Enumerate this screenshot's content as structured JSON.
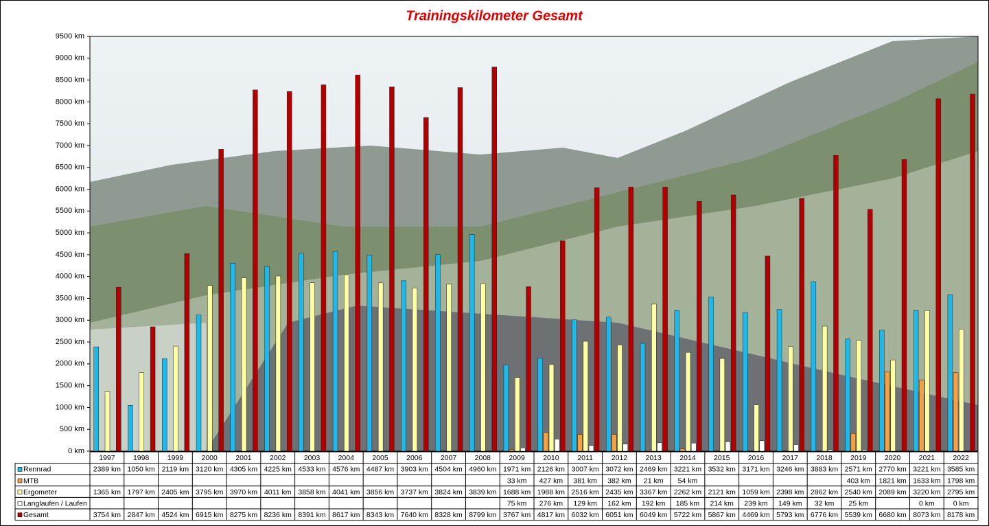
{
  "chart_data": {
    "type": "bar",
    "title": "Trainingskilometer  Gesamt",
    "categories": [
      "1997",
      "1998",
      "1999",
      "2000",
      "2001",
      "2002",
      "2003",
      "2004",
      "2005",
      "2006",
      "2007",
      "2008",
      "2009",
      "2010",
      "2011",
      "2012",
      "2013",
      "2014",
      "2015",
      "2016",
      "2017",
      "2018",
      "2019",
      "2020",
      "2021",
      "2022"
    ],
    "ylim": [
      0,
      9500
    ],
    "yticks": [
      {
        "value": 0,
        "label": "0 km"
      },
      {
        "value": 500,
        "label": "500 km"
      },
      {
        "value": 1000,
        "label": "1000 km"
      },
      {
        "value": 1500,
        "label": "1500 km"
      },
      {
        "value": 2000,
        "label": "2000 km"
      },
      {
        "value": 2500,
        "label": "2500 km"
      },
      {
        "value": 3000,
        "label": "3000 km"
      },
      {
        "value": 3500,
        "label": "3500 km"
      },
      {
        "value": 4000,
        "label": "4000 km"
      },
      {
        "value": 4500,
        "label": "4500 km"
      },
      {
        "value": 5000,
        "label": "5000 km"
      },
      {
        "value": 5500,
        "label": "5500 km"
      },
      {
        "value": 6000,
        "label": "6000 km"
      },
      {
        "value": 6500,
        "label": "6500 km"
      },
      {
        "value": 7000,
        "label": "7000 km"
      },
      {
        "value": 7500,
        "label": "7500 km"
      },
      {
        "value": 8000,
        "label": "8000 km"
      },
      {
        "value": 8500,
        "label": "8500 km"
      },
      {
        "value": 9000,
        "label": "9000 km"
      },
      {
        "value": 9500,
        "label": "9500 km"
      }
    ],
    "series": [
      {
        "name": "Rennrad",
        "color": "#1fb8e8",
        "values": [
          2389,
          1050,
          2119,
          3120,
          4305,
          4225,
          4533,
          4576,
          4487,
          3903,
          4504,
          4960,
          1971,
          2126,
          3007,
          3072,
          2469,
          3221,
          3532,
          3171,
          3246,
          3883,
          2571,
          2770,
          3221,
          3585
        ],
        "value_labels": [
          "2389 km",
          "1050 km",
          "2119 km",
          "3120 km",
          "4305 km",
          "4225 km",
          "4533 km",
          "4576 km",
          "4487 km",
          "3903 km",
          "4504 km",
          "4960 km",
          "1971 km",
          "2126 km",
          "3007 km",
          "3072 km",
          "2469 km",
          "3221 km",
          "3532 km",
          "3171 km",
          "3246 km",
          "3883 km",
          "2571 km",
          "2770 km",
          "3221 km",
          "3585 km"
        ]
      },
      {
        "name": "MTB",
        "color": "#f5a042",
        "values": [
          null,
          null,
          null,
          null,
          null,
          null,
          null,
          null,
          null,
          null,
          null,
          null,
          33,
          427,
          381,
          382,
          21,
          54,
          null,
          null,
          null,
          null,
          403,
          1821,
          1633,
          1798
        ],
        "value_labels": [
          null,
          null,
          null,
          null,
          null,
          null,
          null,
          null,
          null,
          null,
          null,
          null,
          "33 km",
          "427 km",
          "381 km",
          "382 km",
          "21 km",
          "54 km",
          null,
          null,
          null,
          null,
          "403 km",
          "1821 km",
          "1633 km",
          "1798 km"
        ]
      },
      {
        "name": "Ergometer",
        "color": "#ffffa6",
        "values": [
          1365,
          1797,
          2405,
          3795,
          3970,
          4011,
          3858,
          4041,
          3856,
          3737,
          3824,
          3839,
          1688,
          1988,
          2516,
          2435,
          3367,
          2262,
          2121,
          1059,
          2398,
          2862,
          2540,
          2089,
          3220,
          2795
        ],
        "value_labels": [
          "1365 km",
          "1797 km",
          "2405 km",
          "3795 km",
          "3970 km",
          "4011 km",
          "3858 km",
          "4041 km",
          "3856 km",
          "3737 km",
          "3824 km",
          "3839 km",
          "1688 km",
          "1988 km",
          "2516 km",
          "2435 km",
          "3367 km",
          "2262 km",
          "2121 km",
          "1059 km",
          "2398 km",
          "2862 km",
          "2540 km",
          "2089 km",
          "3220 km",
          "2795 km"
        ]
      },
      {
        "name": "Langlaufen / Laufen",
        "color": "#ffffff",
        "values": [
          null,
          null,
          null,
          null,
          null,
          null,
          null,
          null,
          null,
          null,
          null,
          null,
          75,
          276,
          129,
          162,
          192,
          185,
          214,
          239,
          149,
          32,
          25,
          null,
          0,
          0
        ],
        "value_labels": [
          null,
          null,
          null,
          null,
          null,
          null,
          null,
          null,
          null,
          null,
          null,
          null,
          "75 km",
          "276 km",
          "129 km",
          "162 km",
          "192 km",
          "185 km",
          "214 km",
          "239 km",
          "149 km",
          "32 km",
          "25 km",
          null,
          "0 km",
          "0 km"
        ]
      },
      {
        "name": "Gesamt",
        "color": "#b00000",
        "values": [
          3754,
          2847,
          4524,
          6915,
          8275,
          8236,
          8391,
          8617,
          8343,
          7640,
          8328,
          8799,
          3767,
          4817,
          6032,
          6051,
          6049,
          5722,
          5867,
          4469,
          5793,
          6776,
          5539,
          6680,
          8073,
          8178
        ],
        "value_labels": [
          "3754 km",
          "2847 km",
          "4524 km",
          "6915 km",
          "8275 km",
          "8236 km",
          "8391 km",
          "8617 km",
          "8343 km",
          "7640 km",
          "8328 km",
          "8799 km",
          "3767 km",
          "4817 km",
          "6032 km",
          "6051 km",
          "6049 km",
          "5722 km",
          "5867 km",
          "4469 km",
          "5793 km",
          "6776 km",
          "5539 km",
          "6680 km",
          "8073 km",
          "8178 km"
        ]
      }
    ]
  }
}
